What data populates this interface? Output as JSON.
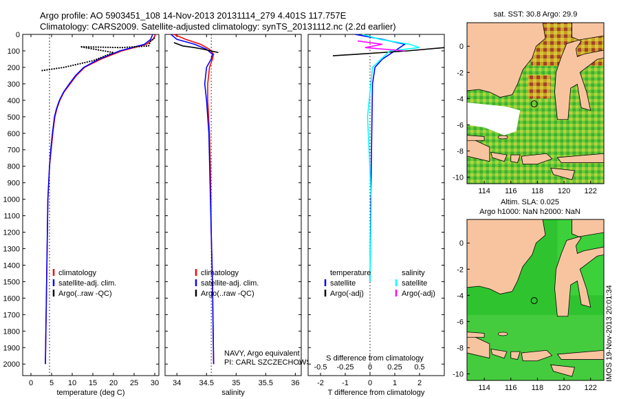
{
  "header": {
    "line1": "Argo profile: AO 5903451_108 14-Nov-2013 20131114_279 4.401S 117.757E",
    "line2": "Climatology: CARS2009. Satellite-adjusted climatology: synTS_20131112.nc (2.2d earlier)"
  },
  "side_label": "IMOS 19-Nov-2013 20:01:34",
  "chart_data": [
    {
      "id": "temperature",
      "type": "line",
      "xlabel": "temperature (deg C)",
      "xlim": [
        -2,
        31
      ],
      "ylim": [
        0,
        2070
      ],
      "xticks": [
        0,
        5,
        10,
        15,
        20,
        25,
        30
      ],
      "yticks": [
        0,
        100,
        200,
        300,
        400,
        500,
        600,
        700,
        800,
        900,
        1000,
        1100,
        1200,
        1300,
        1400,
        1500,
        1600,
        1700,
        1800,
        1900,
        2000
      ],
      "ref_x": 4.5,
      "legend": [
        {
          "label": "climatology",
          "color": "#ff0000"
        },
        {
          "label": "satellite-adj. clim.",
          "color": "#0000ff"
        },
        {
          "label": "Argo(..raw -QC)",
          "color": "#000000"
        }
      ],
      "series": [
        {
          "name": "climatology",
          "color": "#ff0000",
          "x": [
            30.2,
            29.6,
            28.0,
            22.0,
            17.0,
            13.0,
            11.0,
            9.5,
            8.0,
            7.0,
            6.3,
            5.8,
            5.3,
            4.9,
            4.5,
            4.3,
            4.1,
            3.8,
            3.5
          ],
          "y": [
            0,
            30,
            60,
            100,
            150,
            200,
            250,
            300,
            350,
            400,
            450,
            500,
            600,
            700,
            800,
            900,
            1000,
            1500,
            2000
          ]
        },
        {
          "name": "satellite-adj. clim.",
          "color": "#0000ff",
          "x": [
            29.5,
            29.0,
            27.5,
            21.5,
            16.5,
            12.8,
            10.8,
            9.3,
            7.9,
            6.9,
            6.2,
            5.7,
            5.2,
            4.8,
            4.5,
            4.3,
            4.1,
            3.8,
            3.5
          ],
          "y": [
            0,
            30,
            60,
            100,
            150,
            200,
            250,
            300,
            350,
            400,
            450,
            500,
            600,
            700,
            800,
            900,
            1000,
            1500,
            2000
          ]
        },
        {
          "name": "Argo",
          "color": "#000000",
          "dotted": true,
          "x": [
            30.0,
            29.0,
            28.5,
            22.0,
            12.0,
            20.0,
            15.0,
            8.0,
            2.5
          ],
          "y": [
            20,
            40,
            70,
            80,
            75,
            110,
            160,
            200,
            220
          ]
        }
      ]
    },
    {
      "id": "salinity",
      "type": "line",
      "xlabel": "salinity",
      "xlim": [
        33.8,
        36.1
      ],
      "ylim": [
        0,
        2070
      ],
      "xticks": [
        34,
        34.5,
        35,
        35.5,
        36
      ],
      "ref_x": 34.58,
      "legend": [
        {
          "label": "climatology",
          "color": "#ff0000"
        },
        {
          "label": "satellite-adj. clim.",
          "color": "#0000ff"
        },
        {
          "label": "Argo(..raw -QC)",
          "color": "#000000"
        }
      ],
      "annotation": [
        "NAVY, Argo equivalent",
        "PI: CARL SZCZECHOWSKI"
      ],
      "series": [
        {
          "name": "climatology",
          "color": "#ff0000",
          "x": [
            33.95,
            34.15,
            34.4,
            34.55,
            34.62,
            34.6,
            34.55,
            34.52,
            34.52,
            34.55,
            34.57,
            34.58,
            34.6,
            34.62
          ],
          "y": [
            0,
            30,
            60,
            90,
            120,
            150,
            200,
            300,
            400,
            600,
            900,
            1200,
            1500,
            2000
          ]
        },
        {
          "name": "satellite-adj. clim.",
          "color": "#0000ff",
          "x": [
            33.9,
            34.0,
            34.3,
            34.5,
            34.6,
            34.58,
            34.5,
            34.47,
            34.5,
            34.54,
            34.56,
            34.58,
            34.6,
            34.62
          ],
          "y": [
            0,
            30,
            60,
            90,
            120,
            150,
            200,
            300,
            400,
            600,
            900,
            1200,
            1500,
            2000
          ]
        },
        {
          "name": "Argo",
          "color": "#000000",
          "x": [
            33.95,
            34.1,
            34.3,
            34.45,
            34.7
          ],
          "y": [
            50,
            70,
            80,
            90,
            110
          ]
        }
      ]
    },
    {
      "id": "difference",
      "type": "line",
      "xlabel": "T difference from climatology",
      "xlabel2": "S difference from climatology",
      "xlim": [
        -2.5,
        3.0
      ],
      "ylim": [
        0,
        2070
      ],
      "xticks": [
        -2,
        -1,
        0,
        1,
        2
      ],
      "xticks2": [
        -0.5,
        -0.25,
        0,
        0.25,
        0.5
      ],
      "ref_x": 0,
      "legend_left_title": "temperature",
      "legend_right_title": "salinity",
      "legend": [
        {
          "label": "satellite",
          "color": "#0000ff"
        },
        {
          "label": "Argo(-adj)",
          "color": "#000000"
        }
      ],
      "legend_right": [
        {
          "label": "satellite",
          "color": "#00ffff"
        },
        {
          "label": "Argo(-adj)",
          "color": "#ff00ff"
        }
      ],
      "series": [
        {
          "name": "T satellite",
          "color": "#0000ff",
          "x": [
            -0.6,
            0.5,
            1.4,
            1.0,
            0.5,
            0.2,
            0.1,
            0.05,
            0.0
          ],
          "y": [
            0,
            30,
            60,
            100,
            150,
            200,
            300,
            800,
            1500
          ]
        },
        {
          "name": "T Argo",
          "color": "#000000",
          "x": [
            3.0,
            1.5,
            -1.5
          ],
          "y": [
            80,
            100,
            130
          ]
        },
        {
          "name": "S satellite",
          "color": "#00ffff",
          "x": [
            -0.3,
            0.4,
            1.6,
            2.0,
            0.8,
            0.1,
            -0.1,
            0.05,
            0.0
          ],
          "y": [
            0,
            30,
            60,
            80,
            100,
            200,
            500,
            1000,
            1500
          ]
        },
        {
          "name": "S Argo",
          "color": "#ff00ff",
          "x": [
            -0.5,
            0.5,
            -0.2,
            1.4
          ],
          "y": [
            40,
            60,
            80,
            100
          ]
        }
      ]
    },
    {
      "id": "sst-map",
      "type": "heatmap",
      "title": "sat. SST: 30.8 Argo: 29.9",
      "xlim": [
        112.7,
        123.0
      ],
      "ylim": [
        -10.5,
        1.8
      ],
      "xticks": [
        114,
        116,
        118,
        120,
        122
      ],
      "yticks": [
        0,
        -2,
        -4,
        -6,
        -8,
        -10
      ],
      "marker": [
        117.757,
        -4.401
      ]
    },
    {
      "id": "sla-map",
      "type": "heatmap",
      "title": "Altim. SLA: 0.025",
      "subtitle": "Argo h1000: NaN h2000: NaN",
      "xlim": [
        112.7,
        123.0
      ],
      "ylim": [
        -10.5,
        1.8
      ],
      "xticks": [
        114,
        116,
        118,
        120,
        122
      ],
      "yticks": [
        0,
        -2,
        -4,
        -6,
        -8,
        -10
      ],
      "marker": [
        117.757,
        -4.401
      ]
    }
  ]
}
